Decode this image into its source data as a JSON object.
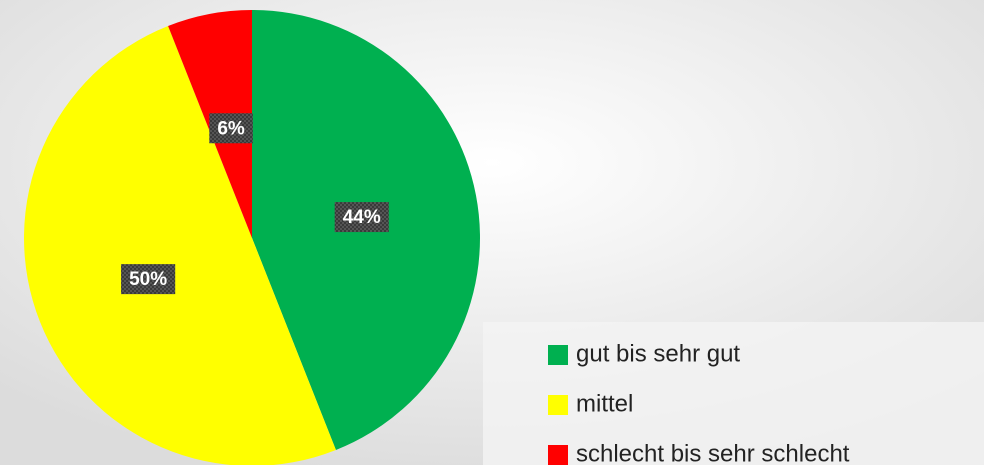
{
  "chart_data": {
    "type": "pie",
    "categories": [
      "gut bis sehr gut",
      "mittel",
      "schlecht bis sehr schlecht"
    ],
    "values": [
      44,
      50,
      6
    ],
    "value_labels": [
      "44%",
      "50%",
      "6%"
    ],
    "colors": [
      "#00b050",
      "#ffff00",
      "#ff0000"
    ],
    "legend": "bottom-right"
  }
}
